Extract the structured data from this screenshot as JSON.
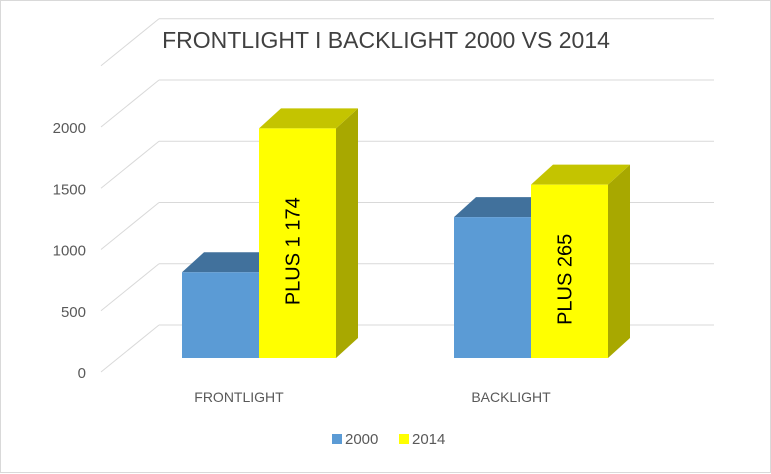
{
  "chart_data": {
    "type": "bar",
    "title": "FRONTLIGHT I BACKLIGHT 2000 VS 2014",
    "categories": [
      "FRONTLIGHT",
      "BACKLIGHT"
    ],
    "series": [
      {
        "name": "2000",
        "values": [
          700,
          1150
        ],
        "color": "#5b9bd5"
      },
      {
        "name": "2014",
        "values": [
          1874,
          1415
        ],
        "color": "#ffff00"
      }
    ],
    "annotations": [
      "PLUS  1 174",
      "PLUS  265"
    ],
    "yticks": [
      0,
      500,
      1000,
      1500,
      2000
    ],
    "ylim": [
      0,
      2500
    ],
    "xlabel": "",
    "ylabel": "",
    "grid": true,
    "legend_position": "bottom"
  }
}
